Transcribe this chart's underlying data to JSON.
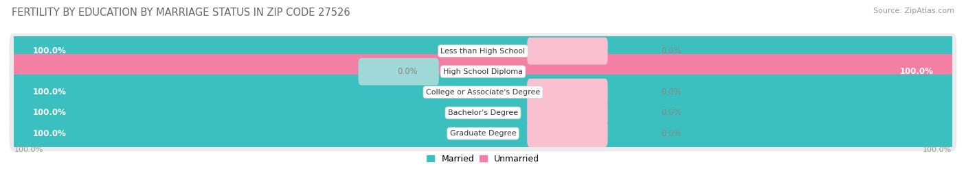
{
  "title": "FERTILITY BY EDUCATION BY MARRIAGE STATUS IN ZIP CODE 27526",
  "source": "Source: ZipAtlas.com",
  "categories": [
    "Less than High School",
    "High School Diploma",
    "College or Associate's Degree",
    "Bachelor's Degree",
    "Graduate Degree"
  ],
  "married": [
    100.0,
    0.0,
    100.0,
    100.0,
    100.0
  ],
  "unmarried": [
    0.0,
    100.0,
    0.0,
    0.0,
    0.0
  ],
  "married_color": "#3BBFBF",
  "unmarried_color": "#F47FA4",
  "married_light_color": "#A0D8D8",
  "unmarried_light_color": "#F9C0D0",
  "bar_bg_color": "#EBEBEB",
  "title_color": "#666666",
  "source_color": "#999999",
  "label_color_white": "#FFFFFF",
  "label_color_dark": "#888888",
  "title_fontsize": 10.5,
  "source_fontsize": 8,
  "bar_label_fontsize": 8.5,
  "category_fontsize": 8,
  "legend_fontsize": 9,
  "axis_label_fontsize": 8,
  "figsize": [
    14.06,
    2.69
  ],
  "dpi": 100
}
